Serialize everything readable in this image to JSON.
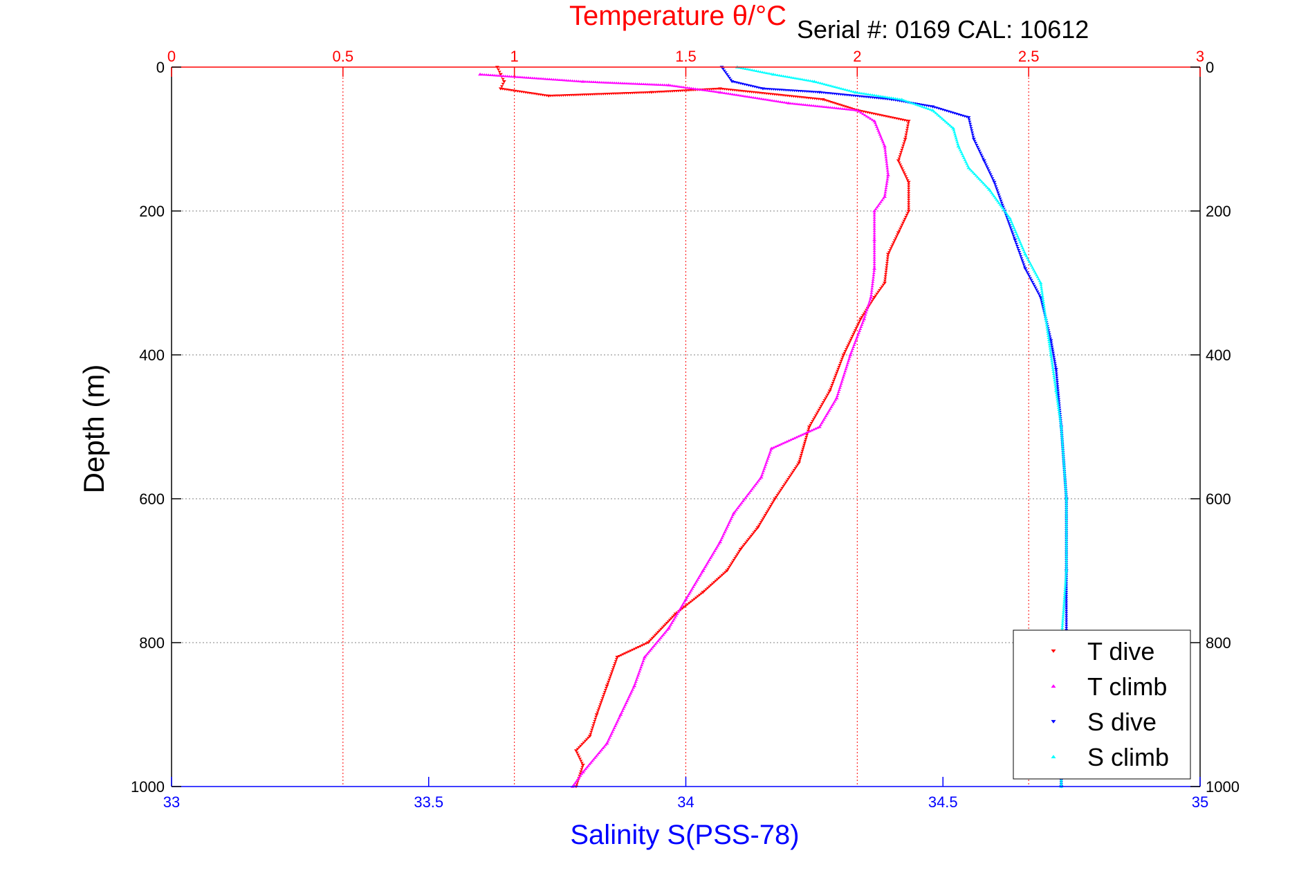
{
  "chart_data": {
    "type": "scatter",
    "title": "Temperature θ/°C",
    "annotation": "Serial #: 0169 CAL: 10612",
    "xlabel_bottom": "Salinity S(PSS-78)",
    "ylabel": "Depth (m)",
    "y_axis": {
      "range": [
        0,
        1000
      ],
      "reversed": true,
      "ticks": [
        0,
        200,
        400,
        600,
        800,
        1000
      ]
    },
    "x_axis_top": {
      "quantity": "Temperature θ/°C",
      "range": [
        0,
        3
      ],
      "ticks": [
        0,
        0.5,
        1,
        1.5,
        2,
        2.5,
        3
      ]
    },
    "x_axis_bottom": {
      "quantity": "Salinity S(PSS-78)",
      "range": [
        33,
        35
      ],
      "ticks": [
        33,
        33.5,
        34,
        34.5,
        35
      ]
    },
    "grid": true,
    "legend_position": "bottom-right",
    "colors": {
      "temperature_axis": "#ff0000",
      "salinity_axis": "#0000ff",
      "grid": "#808080"
    },
    "series": [
      {
        "name": "T dive",
        "axis": "top",
        "color": "#ff0000",
        "marker": "triangle-down",
        "points": [
          [
            0.95,
            0
          ],
          [
            0.96,
            10
          ],
          [
            0.97,
            20
          ],
          [
            0.96,
            30
          ],
          [
            1.1,
            40
          ],
          [
            1.4,
            35
          ],
          [
            1.6,
            30
          ],
          [
            1.9,
            45
          ],
          [
            2.0,
            60
          ],
          [
            2.15,
            75
          ],
          [
            2.14,
            100
          ],
          [
            2.12,
            130
          ],
          [
            2.15,
            160
          ],
          [
            2.15,
            200
          ],
          [
            2.12,
            230
          ],
          [
            2.09,
            260
          ],
          [
            2.08,
            300
          ],
          [
            2.05,
            320
          ],
          [
            2.01,
            350
          ],
          [
            1.96,
            400
          ],
          [
            1.92,
            450
          ],
          [
            1.86,
            500
          ],
          [
            1.83,
            550
          ],
          [
            1.76,
            600
          ],
          [
            1.71,
            640
          ],
          [
            1.66,
            670
          ],
          [
            1.62,
            700
          ],
          [
            1.55,
            730
          ],
          [
            1.47,
            760
          ],
          [
            1.39,
            800
          ],
          [
            1.3,
            820
          ],
          [
            1.27,
            860
          ],
          [
            1.24,
            900
          ],
          [
            1.22,
            930
          ],
          [
            1.18,
            950
          ],
          [
            1.2,
            970
          ],
          [
            1.18,
            1000
          ]
        ]
      },
      {
        "name": "T climb",
        "axis": "top",
        "color": "#ff00ff",
        "marker": "triangle-up",
        "points": [
          [
            0.9,
            10
          ],
          [
            1.2,
            20
          ],
          [
            1.45,
            25
          ],
          [
            1.6,
            35
          ],
          [
            1.8,
            50
          ],
          [
            2.0,
            60
          ],
          [
            2.05,
            75
          ],
          [
            2.08,
            110
          ],
          [
            2.09,
            150
          ],
          [
            2.08,
            180
          ],
          [
            2.05,
            200
          ],
          [
            2.05,
            240
          ],
          [
            2.05,
            280
          ],
          [
            2.04,
            320
          ],
          [
            2.02,
            350
          ],
          [
            1.98,
            400
          ],
          [
            1.94,
            460
          ],
          [
            1.89,
            500
          ],
          [
            1.75,
            530
          ],
          [
            1.72,
            570
          ],
          [
            1.64,
            620
          ],
          [
            1.6,
            660
          ],
          [
            1.55,
            700
          ],
          [
            1.5,
            740
          ],
          [
            1.45,
            780
          ],
          [
            1.38,
            820
          ],
          [
            1.35,
            860
          ],
          [
            1.31,
            900
          ],
          [
            1.27,
            940
          ],
          [
            1.2,
            980
          ],
          [
            1.17,
            1000
          ]
        ]
      },
      {
        "name": "S dive",
        "axis": "bottom",
        "color": "#0000ff",
        "marker": "triangle-down",
        "points": [
          [
            34.07,
            0
          ],
          [
            34.09,
            20
          ],
          [
            34.15,
            30
          ],
          [
            34.26,
            35
          ],
          [
            34.4,
            45
          ],
          [
            34.48,
            55
          ],
          [
            34.55,
            70
          ],
          [
            34.56,
            100
          ],
          [
            34.58,
            130
          ],
          [
            34.6,
            160
          ],
          [
            34.62,
            200
          ],
          [
            34.64,
            240
          ],
          [
            34.66,
            280
          ],
          [
            34.69,
            320
          ],
          [
            34.71,
            380
          ],
          [
            34.72,
            420
          ],
          [
            34.73,
            500
          ],
          [
            34.74,
            600
          ],
          [
            34.74,
            700
          ],
          [
            34.74,
            800
          ],
          [
            34.73,
            900
          ],
          [
            34.73,
            1000
          ]
        ]
      },
      {
        "name": "S climb",
        "axis": "bottom",
        "color": "#00ffff",
        "marker": "triangle-up",
        "points": [
          [
            34.1,
            0
          ],
          [
            34.17,
            10
          ],
          [
            34.25,
            20
          ],
          [
            34.33,
            35
          ],
          [
            34.42,
            45
          ],
          [
            34.48,
            60
          ],
          [
            34.52,
            85
          ],
          [
            34.53,
            110
          ],
          [
            34.55,
            140
          ],
          [
            34.59,
            170
          ],
          [
            34.63,
            210
          ],
          [
            34.66,
            260
          ],
          [
            34.69,
            300
          ],
          [
            34.7,
            350
          ],
          [
            34.71,
            400
          ],
          [
            34.72,
            450
          ],
          [
            34.73,
            500
          ],
          [
            34.74,
            600
          ],
          [
            34.74,
            700
          ],
          [
            34.73,
            800
          ],
          [
            34.73,
            900
          ],
          [
            34.73,
            1000
          ]
        ]
      }
    ]
  }
}
